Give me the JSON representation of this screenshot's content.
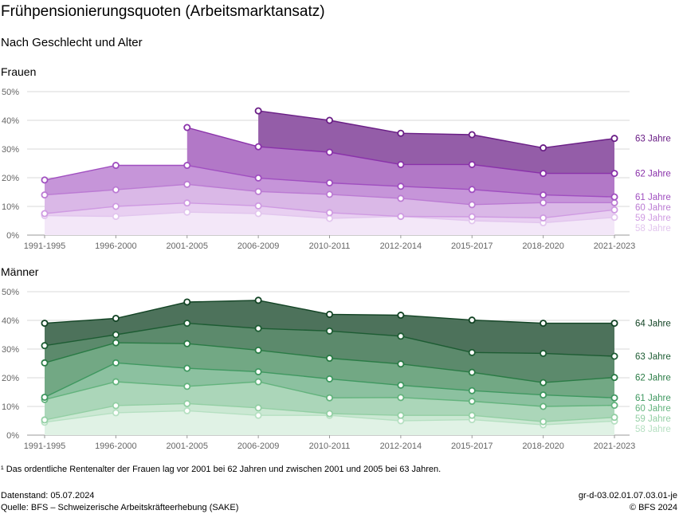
{
  "title": "Frühpensionierungsquoten (Arbeitsmarktansatz)",
  "subtitle": "Nach Geschlecht und Alter",
  "footnote": "¹ Das ordentliche Rentenalter der Frauen lag vor 2001 bei 62 Jahren und zwischen 2001 und 2005 bei 63 Jahren.",
  "meta": {
    "date": "Datenstand: 05.07.2024",
    "source": "Quelle: BFS – Schweizerische Arbeitskräfteerhebung (SAKE)",
    "id": "gr-d-03.02.01.07.03.01-je",
    "copyright": "© BFS 2024"
  },
  "chart_data": [
    {
      "type": "area",
      "panel": "Frauen",
      "categories": [
        "1991-1995",
        "1996-2000",
        "2001-2005",
        "2006-2009",
        "2010-2011",
        "2012-2014",
        "2015-2017",
        "2018-2020",
        "2021-2023"
      ],
      "y_ticks": [
        "0%",
        "10%",
        "20%",
        "30%",
        "40%",
        "50%"
      ],
      "ylim": [
        0,
        50
      ],
      "grid": true,
      "series": [
        {
          "name": "58 Jahre",
          "color": "#e2c6ee",
          "values": [
            6.8,
            6.5,
            8.0,
            7.5,
            5.8,
            6.5,
            5.0,
            4.3,
            6.2
          ]
        },
        {
          "name": "59 Jahre",
          "color": "#cf9be2",
          "values": [
            7.5,
            10.0,
            11.2,
            10.2,
            7.8,
            6.5,
            6.4,
            6.0,
            8.8
          ]
        },
        {
          "name": "60 Jahre",
          "color": "#bb7bd3",
          "values": [
            14.0,
            15.8,
            17.7,
            15.2,
            14.2,
            12.8,
            10.6,
            11.3,
            11.3
          ]
        },
        {
          "name": "61 Jahre",
          "color": "#a04fc0",
          "values": [
            19.2,
            24.3,
            24.3,
            19.9,
            18.2,
            17.0,
            15.9,
            14.0,
            13.3
          ]
        },
        {
          "name": "62 Jahre",
          "color": "#8a32aa",
          "values": [
            null,
            null,
            37.5,
            30.8,
            28.9,
            24.6,
            24.6,
            21.5,
            21.5
          ]
        },
        {
          "name": "63 Jahre",
          "color": "#6a1e86",
          "values": [
            null,
            null,
            null,
            43.3,
            40.0,
            35.5,
            35.0,
            30.4,
            33.7
          ]
        }
      ]
    },
    {
      "type": "area",
      "panel": "Männer",
      "categories": [
        "1991-1995",
        "1996-2000",
        "2001-2005",
        "2006-2009",
        "2010-2011",
        "2012-2014",
        "2015-2017",
        "2018-2020",
        "2021-2023"
      ],
      "y_ticks": [
        "0%",
        "10%",
        "20%",
        "30%",
        "40%",
        "50%"
      ],
      "ylim": [
        0,
        50
      ],
      "grid": true,
      "series": [
        {
          "name": "58 Jahre",
          "color": "#b6e0c2",
          "values": [
            4.5,
            7.8,
            8.5,
            6.9,
            6.9,
            5.0,
            5.4,
            3.6,
            4.9
          ]
        },
        {
          "name": "59 Jahre",
          "color": "#93cfa4",
          "values": [
            5.3,
            10.3,
            11.0,
            9.5,
            7.5,
            6.9,
            6.9,
            4.7,
            6.2
          ]
        },
        {
          "name": "60 Jahre",
          "color": "#63b37d",
          "values": [
            12.4,
            18.6,
            17.0,
            18.6,
            13.0,
            13.1,
            11.8,
            10.0,
            10.4
          ]
        },
        {
          "name": "61 Jahre",
          "color": "#3f9860",
          "values": [
            13.2,
            25.2,
            23.3,
            22.1,
            19.6,
            17.4,
            15.5,
            14.0,
            13.0
          ]
        },
        {
          "name": "62 Jahre",
          "color": "#2a7b45",
          "values": [
            25.2,
            32.2,
            31.9,
            29.6,
            26.8,
            24.8,
            21.9,
            18.3,
            20.1
          ]
        },
        {
          "name": "63 Jahre",
          "color": "#1d5c33",
          "values": [
            31.2,
            35.0,
            39.0,
            37.2,
            36.3,
            34.5,
            28.8,
            28.5,
            27.5
          ]
        },
        {
          "name": "64 Jahre",
          "color": "#124324",
          "values": [
            39.0,
            40.7,
            46.4,
            47.0,
            42.1,
            41.8,
            40.1,
            39.0,
            39.0
          ]
        }
      ]
    }
  ]
}
